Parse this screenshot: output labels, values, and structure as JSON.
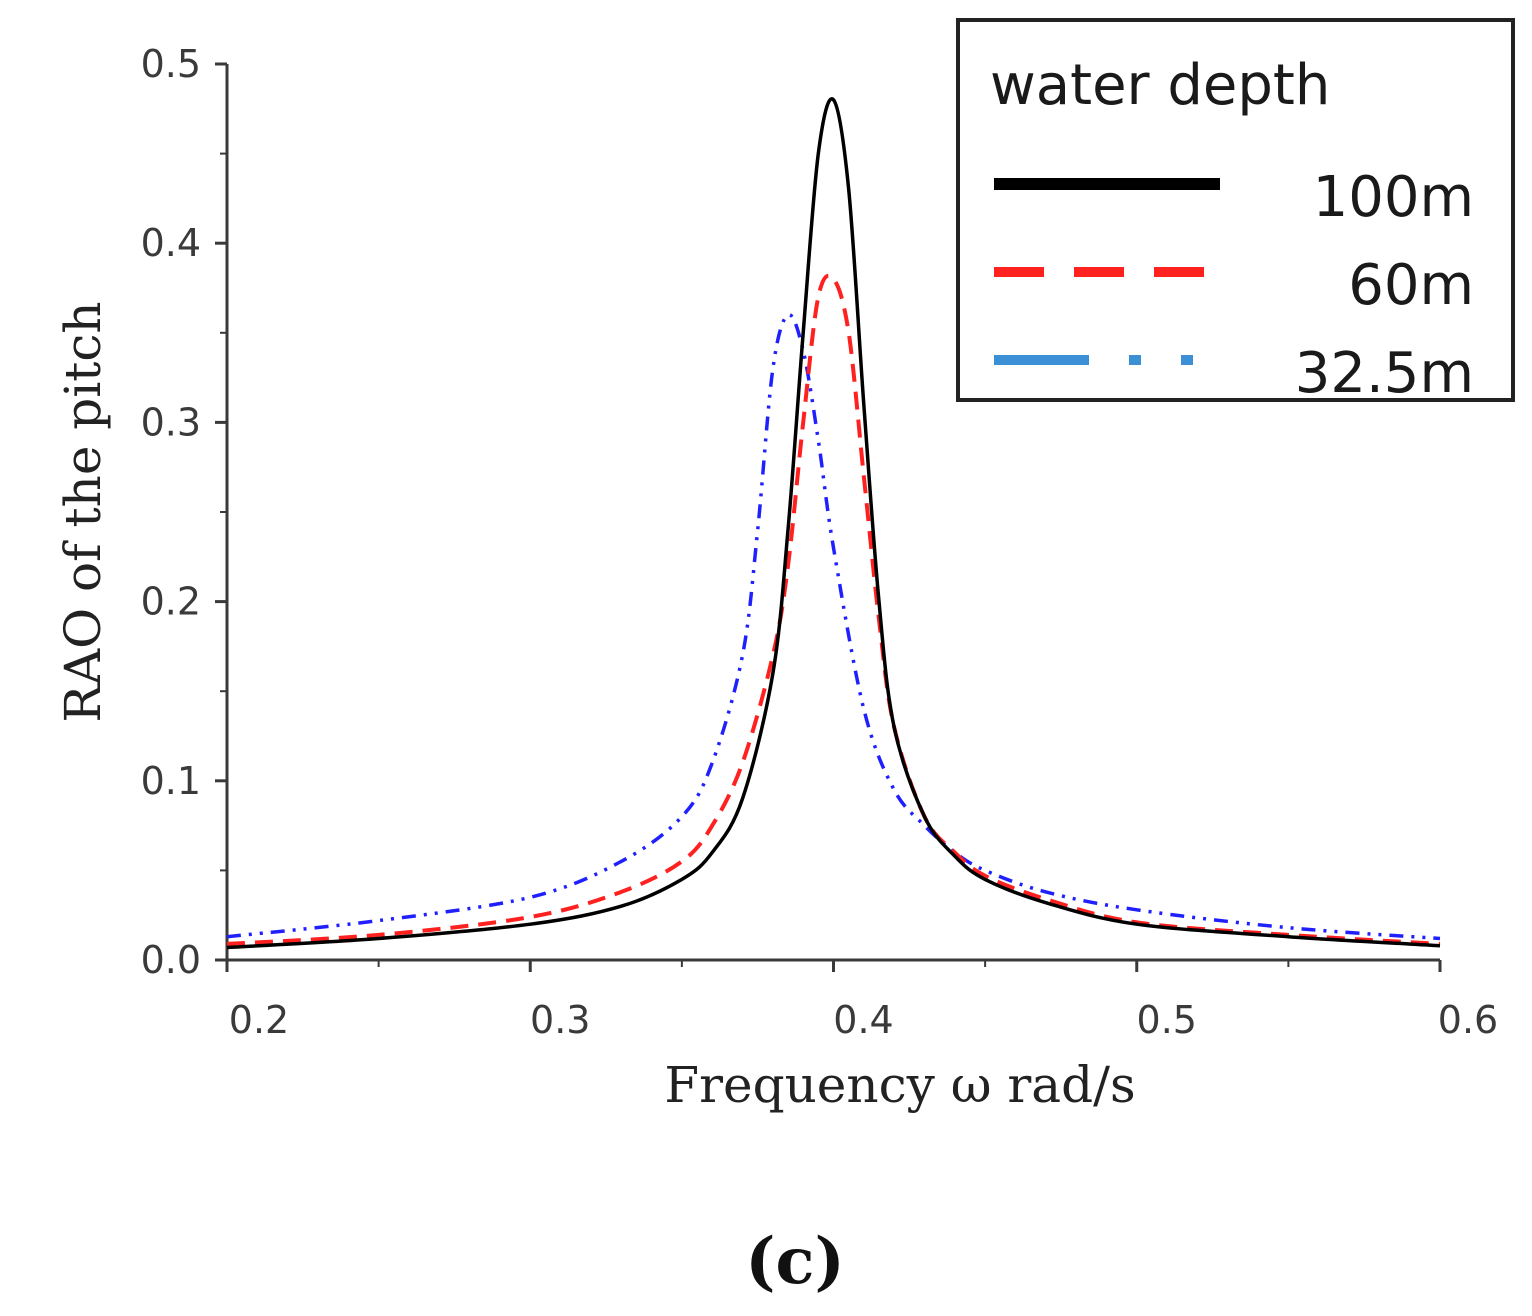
{
  "chart_data": {
    "type": "line",
    "title": "",
    "xlabel": "Frequency ω rad/s",
    "ylabel": "RAO of the pitch",
    "xlim": [
      0.2,
      0.6
    ],
    "ylim": [
      0.0,
      0.5
    ],
    "xticks": [
      "0.2",
      "0.3",
      "0.4",
      "0.5",
      "0.6"
    ],
    "yticks": [
      "0.0",
      "0.1",
      "0.2",
      "0.3",
      "0.4",
      "0.5"
    ],
    "grid": false,
    "legend": {
      "title": "water depth",
      "placement": "top-right"
    },
    "panel_label": "(c)",
    "series": [
      {
        "name": "100m",
        "color": "#000000",
        "style": "solid",
        "x": [
          0.2,
          0.25,
          0.3,
          0.33,
          0.35,
          0.36,
          0.37,
          0.38,
          0.385,
          0.39,
          0.395,
          0.4,
          0.405,
          0.41,
          0.415,
          0.42,
          0.43,
          0.44,
          0.45,
          0.47,
          0.5,
          0.55,
          0.6
        ],
        "y": [
          0.007,
          0.012,
          0.02,
          0.03,
          0.045,
          0.06,
          0.09,
          0.16,
          0.24,
          0.35,
          0.45,
          0.48,
          0.43,
          0.31,
          0.2,
          0.13,
          0.08,
          0.058,
          0.045,
          0.032,
          0.02,
          0.013,
          0.008
        ]
      },
      {
        "name": "60m",
        "color": "#ff2020",
        "style": "dashed",
        "x": [
          0.2,
          0.25,
          0.3,
          0.33,
          0.35,
          0.36,
          0.37,
          0.38,
          0.385,
          0.39,
          0.395,
          0.4,
          0.405,
          0.41,
          0.415,
          0.42,
          0.43,
          0.44,
          0.45,
          0.47,
          0.5,
          0.55,
          0.6
        ],
        "y": [
          0.009,
          0.014,
          0.024,
          0.038,
          0.055,
          0.075,
          0.11,
          0.17,
          0.22,
          0.3,
          0.37,
          0.38,
          0.35,
          0.27,
          0.19,
          0.13,
          0.08,
          0.06,
          0.047,
          0.034,
          0.021,
          0.014,
          0.009
        ]
      },
      {
        "name": "32.5m",
        "color": "#2020ff",
        "legend_color": "#3b8fd4",
        "style": "dash-dot-dot",
        "x": [
          0.2,
          0.25,
          0.3,
          0.33,
          0.35,
          0.36,
          0.37,
          0.375,
          0.38,
          0.385,
          0.39,
          0.395,
          0.4,
          0.41,
          0.42,
          0.43,
          0.44,
          0.45,
          0.47,
          0.5,
          0.55,
          0.6
        ],
        "y": [
          0.013,
          0.022,
          0.035,
          0.055,
          0.08,
          0.11,
          0.17,
          0.24,
          0.33,
          0.36,
          0.34,
          0.29,
          0.23,
          0.14,
          0.095,
          0.075,
          0.06,
          0.05,
          0.038,
          0.028,
          0.018,
          0.012
        ]
      }
    ]
  }
}
